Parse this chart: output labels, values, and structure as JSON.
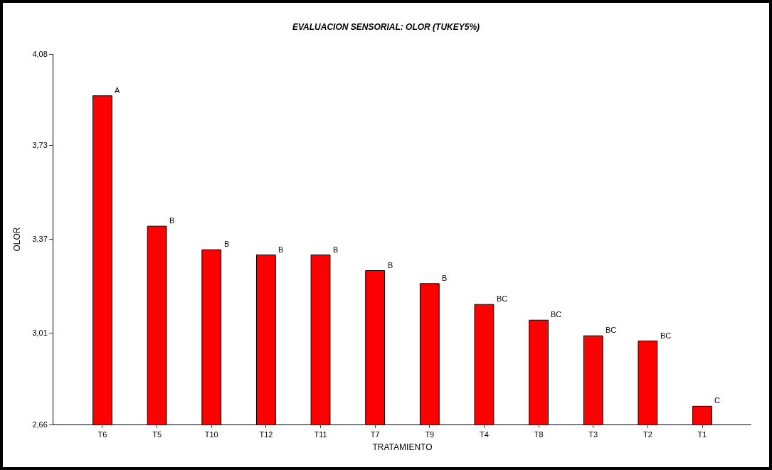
{
  "chart_data": {
    "type": "bar",
    "title": "EVALUACION SENSORIAL: OLOR (TUKEY5%)",
    "xlabel": "TRATAMIENTO",
    "ylabel": "OLOR",
    "categories": [
      "T6",
      "T5",
      "T10",
      "T12",
      "T11",
      "T7",
      "T9",
      "T4",
      "T8",
      "T3",
      "T2",
      "T1"
    ],
    "values": [
      3.92,
      3.42,
      3.33,
      3.31,
      3.31,
      3.25,
      3.2,
      3.12,
      3.06,
      3.0,
      2.98,
      2.73
    ],
    "color": "#ff0000",
    "ylim": [
      2.66,
      4.08
    ],
    "yticks": [
      {
        "value": 2.66,
        "label": "2,66"
      },
      {
        "value": 3.01,
        "label": "3,01"
      },
      {
        "value": 3.37,
        "label": "3,37"
      },
      {
        "value": 3.73,
        "label": "3,73"
      },
      {
        "value": 4.08,
        "label": "4,08"
      }
    ],
    "grid": false,
    "annotations": [
      {
        "text": "A",
        "x": "T6",
        "y": 3.92
      },
      {
        "text": "B",
        "x": "T5",
        "y": 3.42
      },
      {
        "text": "B",
        "x": "T10",
        "y": 3.33
      },
      {
        "text": "B",
        "x": "T12",
        "y": 3.31
      },
      {
        "text": "B",
        "x": "T11",
        "y": 3.31
      },
      {
        "text": "B",
        "x": "T7",
        "y": 3.25
      },
      {
        "text": "B",
        "x": "T9",
        "y": 3.2
      },
      {
        "text": "BC",
        "x": "T4",
        "y": 3.12
      },
      {
        "text": "BC",
        "x": "T8",
        "y": 3.06
      },
      {
        "text": "BC",
        "x": "T3",
        "y": 3.0
      },
      {
        "text": "BC",
        "x": "T2",
        "y": 2.98
      },
      {
        "text": "C",
        "x": "T1",
        "y": 2.73
      }
    ]
  }
}
